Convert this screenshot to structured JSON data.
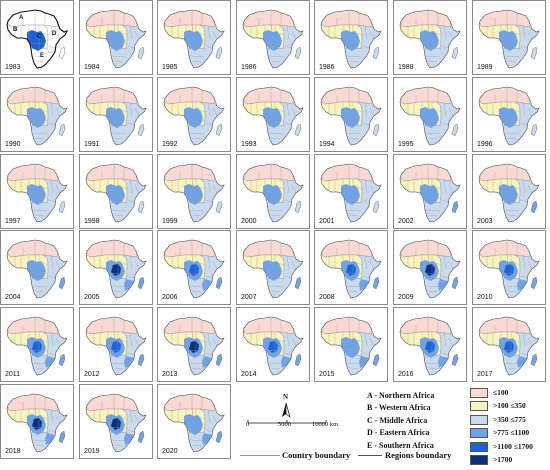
{
  "years": [
    "1983",
    "1984",
    "1985",
    "1986",
    "1986",
    "1988",
    "1989",
    "1990",
    "1991",
    "1992",
    "1993",
    "1994",
    "1995",
    "1996",
    "1997",
    "1998",
    "1999",
    "2000",
    "2001",
    "2002",
    "2003",
    "2004",
    "2005",
    "2006",
    "2007",
    "2008",
    "2009",
    "2010",
    "2011",
    "2012",
    "2013",
    "2014",
    "2015",
    "2016",
    "2017",
    "2018",
    "2019",
    "2020"
  ],
  "intensity": [
    0.18,
    0.22,
    0.15,
    0.12,
    0.14,
    0.1,
    0.16,
    0.2,
    0.14,
    0.13,
    0.22,
    0.18,
    0.17,
    0.15,
    0.24,
    0.26,
    0.3,
    0.22,
    0.28,
    0.32,
    0.35,
    0.4,
    0.62,
    0.5,
    0.36,
    0.48,
    0.6,
    0.58,
    0.55,
    0.52,
    0.6,
    0.5,
    0.45,
    0.47,
    0.56,
    0.64,
    0.66,
    0.42
  ],
  "inset_region_letters": [
    "A",
    "B",
    "C",
    "D",
    "E"
  ],
  "legend": [
    {
      "label": "≤100",
      "color": "#f8d9d3"
    },
    {
      "label": ">100 ≤350",
      "color": "#f9f4bd"
    },
    {
      "label": ">350 ≤775",
      "color": "#c9d9ee"
    },
    {
      "label": ">775 ≤1100",
      "color": "#6fa3e6"
    },
    {
      "label": ">1100 ≤1700",
      "color": "#1e62d8"
    },
    {
      "label": ">1700",
      "color": "#0d2f7e"
    }
  ],
  "regions": [
    "A - Northern Africa",
    "B - Western Africa",
    "C - Middle Africa",
    "D - Eastern Africa",
    "E - Southern Africa"
  ],
  "north_label": "N",
  "scale_labels": [
    "0",
    "5000",
    "10000 km"
  ],
  "country_boundary_label": "Country boundary",
  "regions_boundary_label": "Regions boundary"
}
